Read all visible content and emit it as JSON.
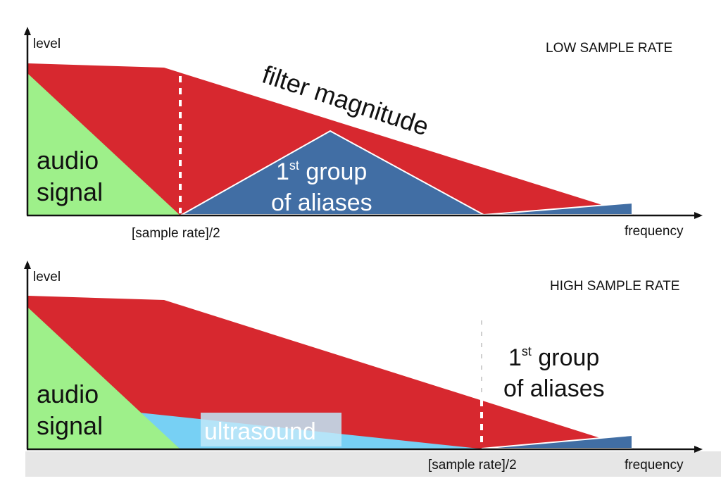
{
  "colors": {
    "filter": "#d7282f",
    "audio": "#9ef08a",
    "aliases": "#416ea4",
    "ultrasound": "#77d0f4",
    "axis": "#111111",
    "footer_band": "#e6e6e6"
  },
  "top_panel": {
    "title": "LOW SAMPLE RATE",
    "y_axis_label": "level",
    "x_axis_label": "frequency",
    "nyquist_label": "[sample rate]/2",
    "filter_label": "filter magnitude",
    "audio_label_line1": "audio",
    "audio_label_line2": "signal",
    "aliases_label_base": "1",
    "aliases_label_sup": "st",
    "aliases_label_rest": " group",
    "aliases_label_line2": "of aliases"
  },
  "bottom_panel": {
    "title": "HIGH SAMPLE RATE",
    "y_axis_label": "level",
    "x_axis_label": "frequency",
    "nyquist_label": "[sample rate]/2",
    "audio_label_line1": "audio",
    "audio_label_line2": "signal",
    "ultrasound_label": "ultrasound",
    "aliases_label_base": "1",
    "aliases_label_sup": "st",
    "aliases_label_rest": " group",
    "aliases_label_line2": "of aliases"
  }
}
